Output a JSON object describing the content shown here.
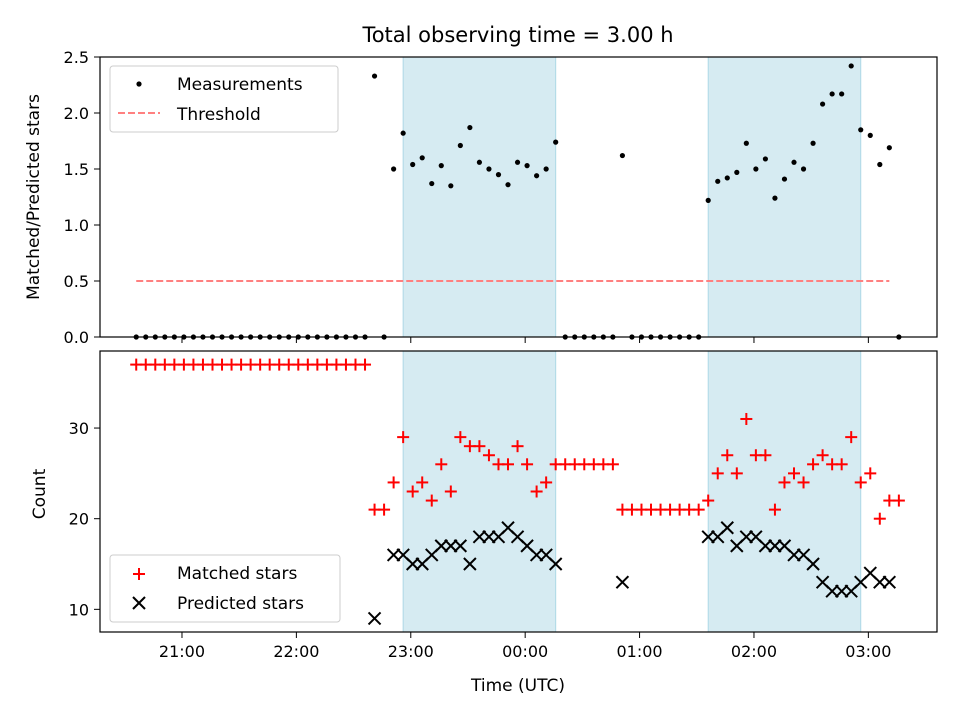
{
  "chart_data": [
    {
      "type": "scatter",
      "title": "Total observing time = 3.00 h",
      "ylabel": "Matched/Predicted stars",
      "xlabel": "",
      "ylim": [
        0,
        2.5
      ],
      "yticks": [
        "0.0",
        "0.5",
        "1.0",
        "1.5",
        "2.0",
        "2.5"
      ],
      "legend_placement": "upper-left",
      "shaded_intervals": [
        [
          "22:56",
          "00:16"
        ],
        [
          "01:36",
          "02:56"
        ]
      ],
      "series": [
        {
          "name": "Measurements",
          "color": "#000000",
          "marker": "dot",
          "x": [
            "20:36",
            "20:41",
            "20:46",
            "20:51",
            "20:56",
            "21:01",
            "21:06",
            "21:11",
            "21:16",
            "21:21",
            "21:26",
            "21:31",
            "21:36",
            "21:41",
            "21:46",
            "21:51",
            "21:56",
            "22:01",
            "22:06",
            "22:11",
            "22:16",
            "22:21",
            "22:26",
            "22:31",
            "22:36",
            "22:41",
            "22:46",
            "22:51",
            "22:56",
            "23:01",
            "23:06",
            "23:11",
            "23:16",
            "23:21",
            "23:26",
            "23:31",
            "23:36",
            "23:41",
            "23:46",
            "23:51",
            "23:56",
            "00:01",
            "00:06",
            "00:11",
            "00:16",
            "00:21",
            "00:26",
            "00:31",
            "00:36",
            "00:41",
            "00:46",
            "00:51",
            "00:56",
            "01:01",
            "01:06",
            "01:11",
            "01:16",
            "01:21",
            "01:26",
            "01:31",
            "01:36",
            "01:41",
            "01:46",
            "01:51",
            "01:56",
            "02:01",
            "02:06",
            "02:11",
            "02:16",
            "02:21",
            "02:26",
            "02:31",
            "02:36",
            "02:41",
            "02:46",
            "02:51",
            "02:56",
            "03:01",
            "03:06",
            "03:11",
            "03:16"
          ],
          "y": [
            0,
            0,
            0,
            0,
            0,
            0,
            0,
            0,
            0,
            0,
            0,
            0,
            0,
            0,
            0,
            0,
            0,
            0,
            0,
            0,
            0,
            0,
            0,
            0,
            0,
            2.33,
            0,
            1.5,
            1.82,
            1.54,
            1.6,
            1.37,
            1.53,
            1.35,
            1.71,
            1.87,
            1.56,
            1.5,
            1.45,
            1.36,
            1.56,
            1.53,
            1.44,
            1.5,
            1.74,
            0,
            0,
            0,
            0,
            0,
            0,
            1.62,
            0,
            0,
            0,
            0,
            0,
            0,
            0,
            0,
            1.22,
            1.39,
            1.42,
            1.47,
            1.73,
            1.5,
            1.59,
            1.24,
            1.41,
            1.56,
            1.5,
            1.73,
            2.08,
            2.17,
            2.17,
            2.42,
            1.85,
            1.8,
            1.54,
            1.69,
            0
          ]
        },
        {
          "name": "Threshold",
          "color": "#ff8080",
          "style": "dashed",
          "x": [
            "20:36",
            "03:11"
          ],
          "y": [
            0.5,
            0.5
          ]
        }
      ]
    },
    {
      "type": "scatter",
      "title": "",
      "xlabel": "Time (UTC)",
      "ylabel": "Count",
      "ylim": [
        7.5,
        38.5
      ],
      "yticks": [
        "10",
        "20",
        "30"
      ],
      "xticks": [
        "21:00",
        "22:00",
        "23:00",
        "00:00",
        "01:00",
        "02:00",
        "03:00"
      ],
      "legend_placement": "lower-left",
      "shaded_intervals": [
        [
          "22:56",
          "00:16"
        ],
        [
          "01:36",
          "02:56"
        ]
      ],
      "series": [
        {
          "name": "Matched stars",
          "color": "#ff0000",
          "marker": "plus",
          "x": [
            "20:36",
            "20:41",
            "20:46",
            "20:51",
            "20:56",
            "21:01",
            "21:06",
            "21:11",
            "21:16",
            "21:21",
            "21:26",
            "21:31",
            "21:36",
            "21:41",
            "21:46",
            "21:51",
            "21:56",
            "22:01",
            "22:06",
            "22:11",
            "22:16",
            "22:21",
            "22:26",
            "22:31",
            "22:36",
            "22:41",
            "22:46",
            "22:51",
            "22:56",
            "23:01",
            "23:06",
            "23:11",
            "23:16",
            "23:21",
            "23:26",
            "23:31",
            "23:36",
            "23:41",
            "23:46",
            "23:51",
            "23:56",
            "00:01",
            "00:06",
            "00:11",
            "00:16",
            "00:21",
            "00:26",
            "00:31",
            "00:36",
            "00:41",
            "00:46",
            "00:51",
            "00:56",
            "01:01",
            "01:06",
            "01:11",
            "01:16",
            "01:21",
            "01:26",
            "01:31",
            "01:36",
            "01:41",
            "01:46",
            "01:51",
            "01:56",
            "02:01",
            "02:06",
            "02:11",
            "02:16",
            "02:21",
            "02:26",
            "02:31",
            "02:36",
            "02:41",
            "02:46",
            "02:51",
            "02:56",
            "03:01",
            "03:06",
            "03:11",
            "03:16"
          ],
          "y": [
            37,
            37,
            37,
            37,
            37,
            37,
            37,
            37,
            37,
            37,
            37,
            37,
            37,
            37,
            37,
            37,
            37,
            37,
            37,
            37,
            37,
            37,
            37,
            37,
            37,
            21,
            21,
            24,
            29,
            23,
            24,
            22,
            26,
            23,
            29,
            28,
            28,
            27,
            26,
            26,
            28,
            26,
            23,
            24,
            26,
            26,
            26,
            26,
            26,
            26,
            26,
            21,
            21,
            21,
            21,
            21,
            21,
            21,
            21,
            21,
            22,
            25,
            27,
            25,
            31,
            27,
            27,
            21,
            24,
            25,
            24,
            26,
            27,
            26,
            26,
            29,
            24,
            25,
            20,
            22,
            22
          ]
        },
        {
          "name": "Predicted stars",
          "color": "#000000",
          "marker": "x",
          "x": [
            "22:41",
            "22:51",
            "22:56",
            "23:01",
            "23:06",
            "23:11",
            "23:16",
            "23:21",
            "23:26",
            "23:31",
            "23:36",
            "23:41",
            "23:46",
            "23:51",
            "23:56",
            "00:01",
            "00:06",
            "00:11",
            "00:16",
            "00:51",
            "01:36",
            "01:41",
            "01:46",
            "01:51",
            "01:56",
            "02:01",
            "02:06",
            "02:11",
            "02:16",
            "02:21",
            "02:26",
            "02:31",
            "02:36",
            "02:41",
            "02:46",
            "02:51",
            "02:56",
            "03:01",
            "03:06",
            "03:11"
          ],
          "y": [
            9,
            16,
            16,
            15,
            15,
            16,
            17,
            17,
            17,
            15,
            18,
            18,
            18,
            19,
            18,
            17,
            16,
            16,
            15,
            13,
            18,
            18,
            19,
            17,
            18,
            18,
            17,
            17,
            17,
            16,
            16,
            15,
            13,
            12,
            12,
            12,
            13,
            14,
            13,
            13
          ]
        }
      ]
    }
  ]
}
